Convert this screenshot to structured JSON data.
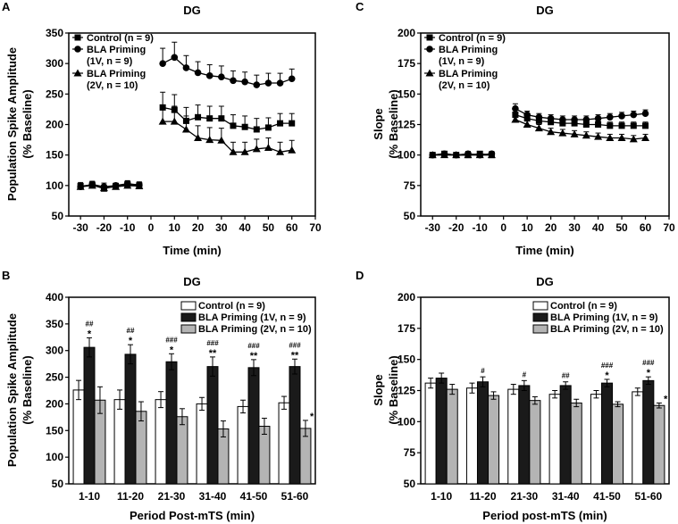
{
  "panels": [
    {
      "letter": "A",
      "chart_data": {
        "type": "line",
        "title": "DG",
        "xlabel": "Time (min)",
        "ylabel": [
          "Population Spike Amplitude",
          "(% Baseline)"
        ],
        "xlim": [
          -35,
          70
        ],
        "ylim": [
          50,
          350
        ],
        "xticks": [
          -30,
          -20,
          -10,
          0,
          10,
          20,
          30,
          40,
          50,
          60,
          70
        ],
        "yticks": [
          50,
          100,
          150,
          200,
          250,
          300,
          350
        ],
        "legend": [
          "Control (n = 9)",
          "BLA Priming",
          "(1V, n = 9)",
          "BLA Priming",
          "(2V, n = 10)"
        ],
        "pre_x": [
          -30,
          -25,
          -20,
          -15,
          -10,
          -5
        ],
        "post_x": [
          5,
          10,
          15,
          20,
          25,
          30,
          35,
          40,
          45,
          50,
          55,
          60
        ],
        "series": [
          {
            "name": "Control (n = 9)",
            "marker": "square",
            "pre": [
              99,
              101,
              95,
              99,
              102,
              100
            ],
            "pre_err": [
              6,
              5,
              6,
              4,
              5,
              5
            ],
            "post": [
              228,
              224,
              206,
              212,
              210,
              210,
              198,
              196,
              192,
              195,
              202,
              202
            ],
            "post_err": [
              25,
              25,
              22,
              20,
              20,
              20,
              18,
              18,
              18,
              16,
              16,
              16
            ]
          },
          {
            "name": "BLA Priming (1V, n = 9)",
            "marker": "circle",
            "pre": [
              98,
              102,
              98,
              100,
              103,
              101
            ],
            "pre_err": [
              5,
              5,
              6,
              4,
              5,
              5
            ],
            "post": [
              300,
              310,
              293,
              285,
              280,
              278,
              272,
              270,
              265,
              268,
              268,
              275
            ],
            "post_err": [
              25,
              25,
              20,
              18,
              18,
              18,
              16,
              16,
              16,
              16,
              16,
              16
            ]
          },
          {
            "name": "BLA Priming (2V, n = 10)",
            "marker": "triangle",
            "pre": [
              98,
              100,
              96,
              98,
              100,
              99
            ],
            "pre_err": [
              5,
              5,
              5,
              4,
              5,
              5
            ],
            "post": [
              205,
              205,
              192,
              178,
              175,
              174,
              155,
              155,
              160,
              162,
              155,
              158
            ],
            "post_err": [
              25,
              25,
              22,
              20,
              20,
              20,
              16,
              16,
              16,
              16,
              16,
              16
            ]
          }
        ]
      }
    },
    {
      "letter": "C",
      "chart_data": {
        "type": "line",
        "title": "DG",
        "xlabel": "Time (min)",
        "ylabel": [
          "Slope",
          "(% Baseline)"
        ],
        "xlim": [
          -35,
          70
        ],
        "ylim": [
          50,
          200
        ],
        "xticks": [
          -30,
          -20,
          -10,
          0,
          10,
          20,
          30,
          40,
          50,
          60,
          70
        ],
        "yticks": [
          50,
          75,
          100,
          125,
          150,
          175,
          200
        ],
        "legend": [
          "Control (n = 9)",
          "BLA Priming",
          "(1V, n = 9)",
          "BLA Priming",
          "(2V, n = 10)"
        ],
        "pre_x": [
          -30,
          -25,
          -20,
          -15,
          -10,
          -5
        ],
        "post_x": [
          5,
          10,
          15,
          20,
          25,
          30,
          35,
          40,
          45,
          50,
          55,
          60
        ],
        "series": [
          {
            "name": "Control (n = 9)",
            "marker": "square",
            "pre": [
              100,
              101,
              100,
              100,
              101,
              100
            ],
            "pre_err": [
              2,
              2,
              2,
              2,
              2,
              2
            ],
            "post": [
              133,
              130,
              128,
              127,
              126,
              126,
              125,
              125,
              124,
              124,
              124,
              124
            ],
            "post_err": [
              4,
              3,
              3,
              3,
              3,
              3,
              3,
              3,
              3,
              3,
              3,
              3
            ]
          },
          {
            "name": "BLA Priming (1V, n = 9)",
            "marker": "circle",
            "pre": [
              100,
              101,
              100,
              101,
              100,
              101
            ],
            "pre_err": [
              2,
              2,
              2,
              2,
              2,
              2
            ],
            "post": [
              138,
              133,
              131,
              130,
              129,
              129,
              129,
              130,
              131,
              132,
              133,
              134
            ],
            "post_err": [
              4,
              3,
              3,
              3,
              3,
              3,
              3,
              3,
              3,
              3,
              3,
              3
            ]
          },
          {
            "name": "BLA Priming (2V, n = 10)",
            "marker": "triangle",
            "pre": [
              100,
              100,
              100,
              100,
              100,
              100
            ],
            "pre_err": [
              2,
              2,
              2,
              2,
              2,
              2
            ],
            "post": [
              129,
              125,
              122,
              119,
              118,
              117,
              116,
              115,
              114,
              114,
              113,
              114
            ],
            "post_err": [
              4,
              3,
              3,
              3,
              3,
              3,
              3,
              3,
              3,
              3,
              3,
              3
            ]
          }
        ]
      }
    },
    {
      "letter": "B",
      "chart_data": {
        "type": "bar",
        "title": "DG",
        "xlabel": "Period Post-mTS (min)",
        "ylabel": [
          "Population Spike Amplitude",
          "(% Baseline)"
        ],
        "ylim": [
          50,
          400
        ],
        "yticks": [
          50,
          100,
          150,
          200,
          250,
          300,
          350,
          400
        ],
        "categories": [
          "1-10",
          "11-20",
          "21-30",
          "31-40",
          "41-50",
          "51-60"
        ],
        "legend": [
          "Control (n = 9)",
          "BLA Priming (1V, n = 9)",
          "BLA Priming (2V, n = 10)"
        ],
        "series": [
          {
            "name": "Control (n = 9)",
            "color": "#ffffff",
            "values": [
              226,
              208,
              208,
              200,
              195,
              202
            ],
            "err": [
              18,
              18,
              15,
              12,
              12,
              12
            ]
          },
          {
            "name": "BLA Priming (1V, n = 9)",
            "color": "#1a1a1a",
            "values": [
              306,
              293,
              279,
              270,
              268,
              270
            ],
            "err": [
              18,
              18,
              15,
              18,
              15,
              14
            ]
          },
          {
            "name": "BLA Priming (2V, n = 10)",
            "color": "#b4b4b4",
            "values": [
              207,
              186,
              176,
              153,
              158,
              154
            ],
            "err": [
              25,
              18,
              15,
              15,
              15,
              15
            ]
          }
        ],
        "annotations": [
          {
            "category": 0,
            "series": 1,
            "labels": [
              "##",
              "*"
            ]
          },
          {
            "category": 1,
            "series": 1,
            "labels": [
              "##",
              "*"
            ]
          },
          {
            "category": 2,
            "series": 1,
            "labels": [
              "###",
              "*"
            ]
          },
          {
            "category": 3,
            "series": 1,
            "labels": [
              "###",
              "**"
            ]
          },
          {
            "category": 4,
            "series": 1,
            "labels": [
              "###",
              "**"
            ]
          },
          {
            "category": 5,
            "series": 1,
            "labels": [
              "###",
              "**"
            ]
          },
          {
            "category": 5,
            "series": 2,
            "labels": [
              "*"
            ]
          }
        ]
      }
    },
    {
      "letter": "D",
      "chart_data": {
        "type": "bar",
        "title": "DG",
        "xlabel": "Period post-mTS (min)",
        "ylabel": [
          "Slope",
          "(% Baseline)"
        ],
        "ylim": [
          50,
          200
        ],
        "yticks": [
          50,
          75,
          100,
          125,
          150,
          175,
          200
        ],
        "categories": [
          "1-10",
          "11-20",
          "21-30",
          "31-40",
          "41-50",
          "51-60"
        ],
        "legend": [
          "Control (n = 9)",
          "BLA Priming (1V, n = 9)",
          "BLA Priming (2V, n = 10)"
        ],
        "series": [
          {
            "name": "Control (n = 9)",
            "color": "#ffffff",
            "values": [
              131,
              127,
              126,
              122,
              122,
              124
            ],
            "err": [
              4,
              4,
              4,
              3,
              3,
              3
            ]
          },
          {
            "name": "BLA Priming (1V, n = 9)",
            "color": "#1a1a1a",
            "values": [
              135,
              132,
              129,
              129,
              131,
              133
            ],
            "err": [
              4,
              4,
              4,
              3,
              3,
              3
            ]
          },
          {
            "name": "BLA Priming (2V, n = 10)",
            "color": "#b4b4b4",
            "values": [
              126,
              121,
              117,
              115,
              114,
              113
            ],
            "err": [
              4,
              3,
              3,
              3,
              2,
              2
            ]
          }
        ],
        "annotations": [
          {
            "category": 1,
            "series": 1,
            "labels": [
              "#"
            ]
          },
          {
            "category": 2,
            "series": 1,
            "labels": [
              "#"
            ]
          },
          {
            "category": 3,
            "series": 1,
            "labels": [
              "##"
            ]
          },
          {
            "category": 4,
            "series": 1,
            "labels": [
              "###",
              "*"
            ]
          },
          {
            "category": 5,
            "series": 1,
            "labels": [
              "###",
              "*"
            ]
          },
          {
            "category": 5,
            "series": 2,
            "labels": [
              "*"
            ]
          }
        ]
      }
    }
  ]
}
